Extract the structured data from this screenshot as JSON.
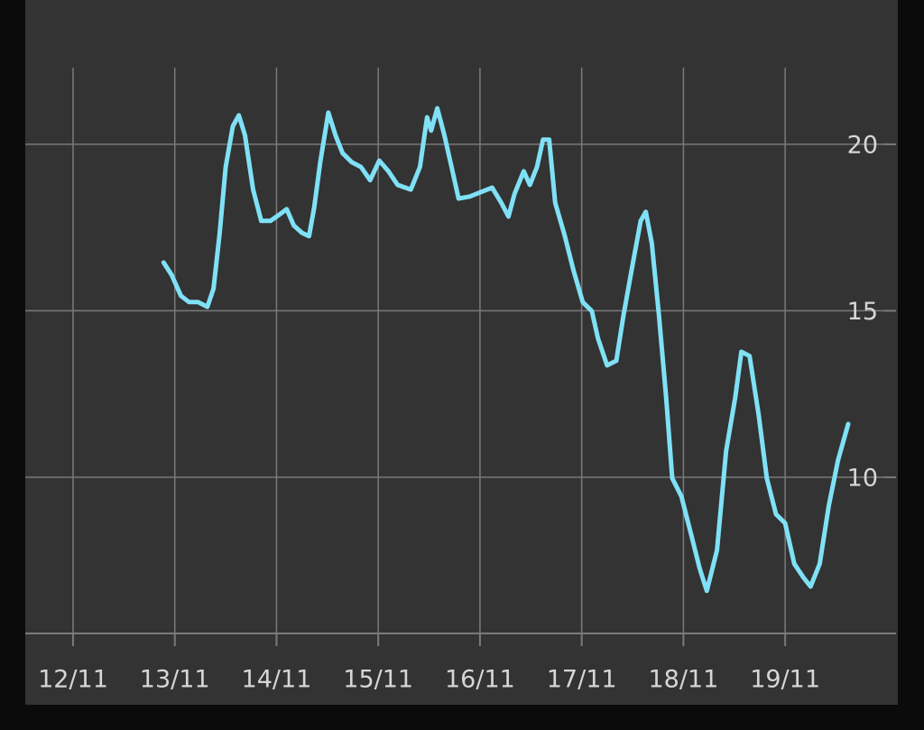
{
  "chart_data": {
    "type": "line",
    "x": [
      12.89,
      12.97,
      13.06,
      13.14,
      13.23,
      13.32,
      13.38,
      13.44,
      13.5,
      13.57,
      13.63,
      13.69,
      13.77,
      13.85,
      13.94,
      14.03,
      14.1,
      14.17,
      14.25,
      14.32,
      14.37,
      14.43,
      14.51,
      14.58,
      14.65,
      14.74,
      14.83,
      14.92,
      15.01,
      15.1,
      15.19,
      15.32,
      15.41,
      15.48,
      15.52,
      15.58,
      15.65,
      15.72,
      15.79,
      15.9,
      16.03,
      16.12,
      16.21,
      16.28,
      16.34,
      16.43,
      16.49,
      16.56,
      16.62,
      16.68,
      16.74,
      16.83,
      16.92,
      17.01,
      17.1,
      17.16,
      17.25,
      17.34,
      17.41,
      17.49,
      17.58,
      17.63,
      17.69,
      17.76,
      17.83,
      17.89,
      17.98,
      18.07,
      18.16,
      18.23,
      18.33,
      18.42,
      18.51,
      18.57,
      18.65,
      18.74,
      18.82,
      18.91,
      19.0,
      19.09,
      19.18,
      19.25,
      19.34,
      19.43,
      19.52,
      19.62
    ],
    "series": [
      {
        "color": "#7fe1f6",
        "values": [
          16.45,
          16.07,
          15.45,
          15.26,
          15.26,
          15.12,
          15.66,
          17.29,
          19.32,
          20.54,
          20.87,
          20.27,
          18.64,
          17.7,
          17.7,
          17.89,
          18.05,
          17.56,
          17.34,
          17.24,
          18.1,
          19.46,
          20.95,
          20.27,
          19.73,
          19.46,
          19.32,
          18.92,
          19.51,
          19.19,
          18.78,
          18.64,
          19.32,
          20.81,
          20.41,
          21.08,
          20.27,
          19.32,
          18.37,
          18.43,
          18.59,
          18.7,
          18.24,
          17.83,
          18.51,
          19.19,
          18.78,
          19.32,
          20.14,
          20.14,
          18.24,
          17.29,
          16.21,
          15.26,
          14.99,
          14.17,
          13.36,
          13.5,
          14.85,
          16.21,
          17.7,
          17.97,
          17.02,
          14.85,
          12.41,
          9.97,
          9.43,
          8.35,
          7.26,
          6.59,
          7.81,
          10.79,
          12.41,
          13.77,
          13.64,
          11.87,
          9.97,
          8.89,
          8.62,
          7.4,
          6.99,
          6.72,
          7.4,
          9.16,
          10.51,
          11.6
        ]
      }
    ],
    "xlim": [
      11.53,
      20.09
    ],
    "xticks": [
      {
        "value": 12,
        "label": "12/11"
      },
      {
        "value": 13,
        "label": "13/11"
      },
      {
        "value": 14,
        "label": "14/11"
      },
      {
        "value": 15,
        "label": "15/11"
      },
      {
        "value": 16,
        "label": "16/11"
      },
      {
        "value": 17,
        "label": "17/11"
      },
      {
        "value": 18,
        "label": "18/11"
      },
      {
        "value": 19,
        "label": "19/11"
      }
    ],
    "ylim": [
      5.31,
      22.3
    ],
    "yticks": [
      10,
      15,
      20
    ],
    "grid": true,
    "y_axis_side": "right"
  }
}
